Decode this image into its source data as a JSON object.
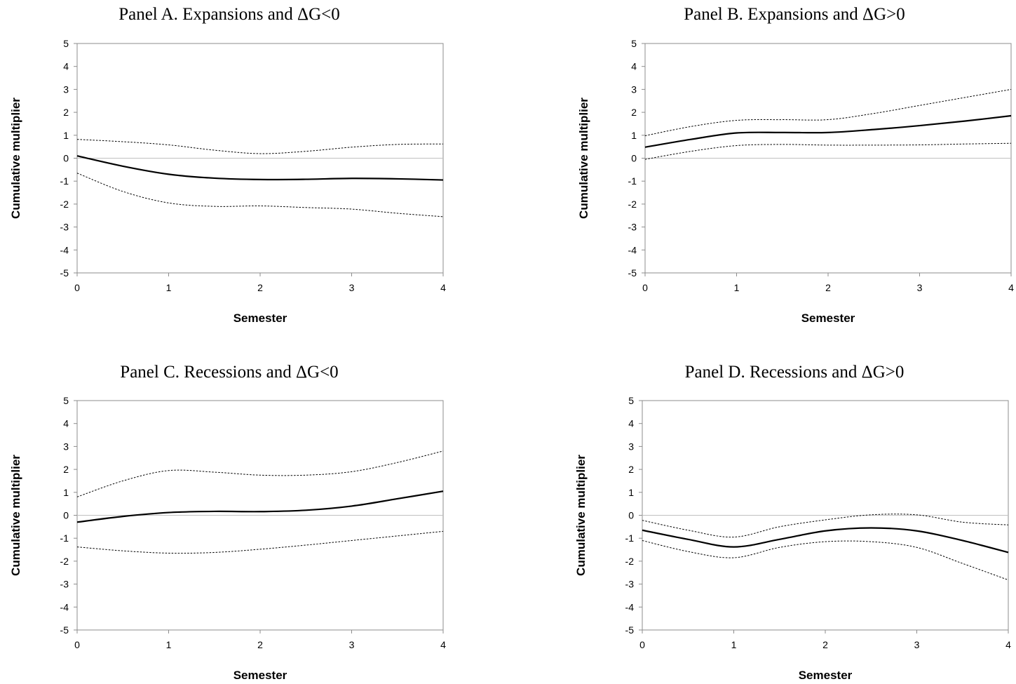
{
  "chart_data": [
    {
      "type": "line",
      "title": "Panel A. Expansions and ΔG<0",
      "xlabel": "Semester",
      "ylabel": "Cumulative multiplier",
      "x": [
        0,
        0.5,
        1,
        1.5,
        2,
        2.5,
        3,
        3.5,
        4
      ],
      "xticks": [
        "0",
        "1",
        "2",
        "3",
        "4"
      ],
      "yticks": [
        "5",
        "4",
        "3",
        "2",
        "1",
        "0",
        "-1",
        "-2",
        "-3",
        "-4",
        "-5"
      ],
      "xlim": [
        0,
        4
      ],
      "ylim": [
        -5,
        5
      ],
      "zero_line": true,
      "series": [
        {
          "role": "estimate",
          "style": "solid",
          "values": [
            0.1,
            -0.35,
            -0.7,
            -0.87,
            -0.93,
            -0.92,
            -0.88,
            -0.9,
            -0.95
          ]
        },
        {
          "role": "upper band",
          "style": "dotted",
          "values": [
            0.82,
            0.72,
            0.58,
            0.35,
            0.2,
            0.3,
            0.48,
            0.6,
            0.62
          ]
        },
        {
          "role": "lower band",
          "style": "dotted",
          "values": [
            -0.65,
            -1.45,
            -1.95,
            -2.1,
            -2.08,
            -2.15,
            -2.22,
            -2.4,
            -2.55
          ]
        }
      ]
    },
    {
      "type": "line",
      "title": "Panel B. Expansions and ΔG>0",
      "xlabel": "Semester",
      "ylabel": "Cumulative multiplier",
      "x": [
        0,
        0.5,
        1,
        1.5,
        2,
        2.5,
        3,
        3.5,
        4
      ],
      "xticks": [
        "0",
        "1",
        "2",
        "3",
        "4"
      ],
      "yticks": [
        "5",
        "4",
        "3",
        "2",
        "1",
        "0",
        "-1",
        "-2",
        "-3",
        "-4",
        "-5"
      ],
      "xlim": [
        0,
        4
      ],
      "ylim": [
        -5,
        5
      ],
      "zero_line": true,
      "series": [
        {
          "role": "estimate",
          "style": "solid",
          "values": [
            0.48,
            0.82,
            1.1,
            1.12,
            1.12,
            1.25,
            1.42,
            1.62,
            1.85
          ]
        },
        {
          "role": "upper band",
          "style": "dotted",
          "values": [
            0.98,
            1.38,
            1.65,
            1.68,
            1.68,
            1.95,
            2.3,
            2.65,
            3.0
          ]
        },
        {
          "role": "lower band",
          "style": "dotted",
          "values": [
            -0.05,
            0.3,
            0.55,
            0.6,
            0.57,
            0.57,
            0.58,
            0.62,
            0.65
          ]
        }
      ]
    },
    {
      "type": "line",
      "title": "Panel C. Recessions and ΔG<0",
      "xlabel": "Semester",
      "ylabel": "Cumulative multiplier",
      "x": [
        0,
        0.5,
        1,
        1.5,
        2,
        2.5,
        3,
        3.5,
        4
      ],
      "xticks": [
        "0",
        "1",
        "2",
        "3",
        "4"
      ],
      "yticks": [
        "5",
        "4",
        "3",
        "2",
        "1",
        "0",
        "-1",
        "-2",
        "-3",
        "-4",
        "-5"
      ],
      "xlim": [
        0,
        4
      ],
      "ylim": [
        -5,
        5
      ],
      "zero_line": true,
      "series": [
        {
          "role": "estimate",
          "style": "solid",
          "values": [
            -0.3,
            -0.05,
            0.12,
            0.17,
            0.16,
            0.22,
            0.4,
            0.72,
            1.05
          ]
        },
        {
          "role": "upper band",
          "style": "dotted",
          "values": [
            0.8,
            1.5,
            1.95,
            1.88,
            1.75,
            1.75,
            1.9,
            2.3,
            2.8
          ]
        },
        {
          "role": "lower band",
          "style": "dotted",
          "values": [
            -1.38,
            -1.55,
            -1.65,
            -1.62,
            -1.48,
            -1.3,
            -1.1,
            -0.9,
            -0.7
          ]
        }
      ]
    },
    {
      "type": "line",
      "title": "Panel D. Recessions and ΔG>0",
      "xlabel": "Semester",
      "ylabel": "Cumulative multiplier",
      "x": [
        0,
        0.5,
        1,
        1.5,
        2,
        2.5,
        3,
        3.5,
        4
      ],
      "xticks": [
        "0",
        "1",
        "2",
        "3",
        "4"
      ],
      "yticks": [
        "5",
        "4",
        "3",
        "2",
        "1",
        "0",
        "-1",
        "-2",
        "-3",
        "-4",
        "-5"
      ],
      "xlim": [
        0,
        4
      ],
      "ylim": [
        -5,
        5
      ],
      "zero_line": true,
      "series": [
        {
          "role": "estimate",
          "style": "solid",
          "values": [
            -0.65,
            -1.05,
            -1.38,
            -1.05,
            -0.68,
            -0.55,
            -0.68,
            -1.1,
            -1.62
          ]
        },
        {
          "role": "upper band",
          "style": "dotted",
          "values": [
            -0.22,
            -0.65,
            -0.95,
            -0.5,
            -0.2,
            0.02,
            0.02,
            -0.3,
            -0.42
          ]
        },
        {
          "role": "lower band",
          "style": "dotted",
          "values": [
            -1.1,
            -1.58,
            -1.85,
            -1.4,
            -1.15,
            -1.15,
            -1.4,
            -2.1,
            -2.82
          ]
        }
      ]
    }
  ]
}
